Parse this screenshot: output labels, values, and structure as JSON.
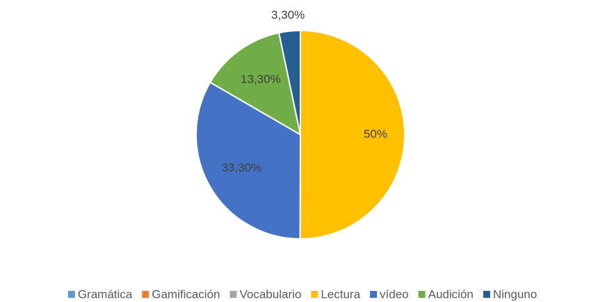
{
  "chart_data": {
    "type": "pie",
    "categories": [
      "Gramática",
      "Gamificación",
      "Vocabulario",
      "Lectura",
      "vídeo",
      "Audición",
      "Ninguno"
    ],
    "values": [
      0,
      0,
      0,
      50,
      33.3,
      13.3,
      3.3
    ],
    "value_labels": [
      null,
      null,
      null,
      "50%",
      "33,30%",
      "13,30%",
      "3,30%"
    ],
    "colors": [
      "#5b9bd5",
      "#ed7d31",
      "#a5a5a5",
      "#ffc000",
      "#4472c4",
      "#70ad47",
      "#255e91"
    ],
    "legend": "bottom"
  }
}
